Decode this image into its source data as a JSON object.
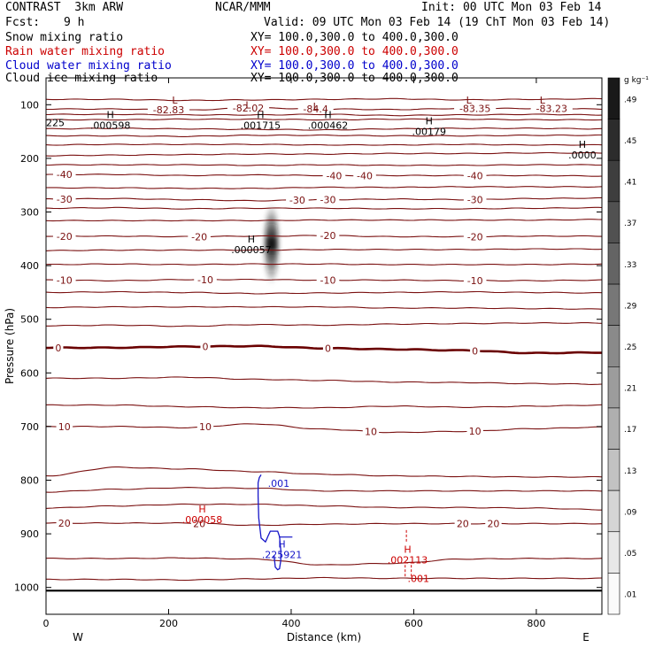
{
  "header": {
    "model": "CONTRAST  3km ARW",
    "center": "NCAR/MMM",
    "init": "Init: 00 UTC Mon 03 Feb 14",
    "fcst_label": "Fcst:",
    "fcst_value": "9 h",
    "valid": "Valid: 09 UTC Mon 03 Feb 14 (19 ChT Mon 03 Feb 14)",
    "fields": [
      {
        "name": "Snow mixing ratio",
        "xy": "XY= 100.0,300.0 to 400.0,300.0",
        "color": "#000000"
      },
      {
        "name": "Rain water mixing ratio",
        "xy": "XY= 100.0,300.0 to 400.0,300.0",
        "color": "#cc0000"
      },
      {
        "name": "Cloud water mixing ratio",
        "xy": "XY= 100.0,300.0 to 400.0,300.0",
        "color": "#0000cc"
      },
      {
        "name": "Cloud ice mixing ratio",
        "xy": "XY= 100.0,300.0 to 400.0,300.0",
        "color": "#000000"
      }
    ]
  },
  "colors": {
    "temperature": "#7a1010",
    "zero_isotherm": "#6a0000",
    "rain": "#cc0000",
    "cloud_water": "#1515c8",
    "ice": "#000000"
  },
  "chart_data": {
    "type": "cross-section",
    "xlabel": "Distance (km)",
    "ylabel": "Pressure (hPa)",
    "xlim": [
      0,
      907
    ],
    "ylim": [
      1050,
      50
    ],
    "xticks": [
      0,
      200,
      400,
      600,
      800
    ],
    "yticks": [
      100,
      200,
      300,
      400,
      500,
      600,
      700,
      800,
      900,
      1000
    ],
    "side_labels": {
      "left": "W",
      "right": "E"
    },
    "colorbar": {
      "unit": "g kg⁻¹",
      "ticks": [
        ".01",
        ".05",
        ".09",
        ".13",
        ".17",
        ".21",
        ".25",
        ".29",
        ".33",
        ".37",
        ".41",
        ".45",
        ".49"
      ],
      "values": [
        0.01,
        0.05,
        0.09,
        0.13,
        0.17,
        0.21,
        0.25,
        0.29,
        0.33,
        0.37,
        0.41,
        0.45,
        0.49
      ]
    },
    "surface_pressure": 1006,
    "temperature_contours": [
      {
        "p": [
          90,
          90,
          92,
          91,
          90,
          89,
          91,
          90,
          89
        ],
        "labels": []
      },
      {
        "p": [
          108,
          108,
          110,
          106,
          108,
          109,
          107,
          107,
          108
        ],
        "labels": [
          {
            "x": 200,
            "text": "-82.83"
          },
          {
            "x": 330,
            "text": "-82.02"
          },
          {
            "x": 440,
            "text": "-84.4"
          },
          {
            "x": 700,
            "text": "-83.35"
          },
          {
            "x": 825,
            "text": "-83.23"
          }
        ]
      },
      {
        "p": [
          118,
          118,
          119,
          119,
          118,
          120,
          119,
          118,
          119
        ],
        "labels": []
      },
      {
        "p": [
          128,
          128,
          127,
          127,
          128,
          127,
          127,
          128,
          128
        ],
        "labels": []
      },
      {
        "p": [
          145,
          144,
          145,
          146,
          147,
          145,
          144,
          144,
          145
        ],
        "labels": []
      },
      {
        "p": [
          158,
          158,
          159,
          157,
          157,
          158,
          158,
          157,
          157
        ],
        "labels": []
      },
      {
        "p": [
          175,
          174,
          174,
          174,
          175,
          175,
          174,
          175,
          175
        ],
        "labels": []
      },
      {
        "p": [
          195,
          194,
          193,
          192,
          192,
          191,
          191,
          190,
          190
        ],
        "labels": []
      },
      {
        "p": [
          212,
          212,
          212,
          213,
          212,
          213,
          213,
          212,
          212
        ],
        "labels": []
      },
      {
        "p": [
          230,
          230,
          232,
          231,
          232,
          232,
          232,
          232,
          233
        ],
        "labels": [
          {
            "x": 30,
            "text": "-40"
          },
          {
            "x": 470,
            "text": "-40"
          },
          {
            "x": 520,
            "text": "-40"
          },
          {
            "x": 700,
            "text": "-40"
          }
        ]
      },
      {
        "p": [
          255,
          255,
          256,
          256,
          254,
          254,
          253,
          253,
          253
        ],
        "labels": []
      },
      {
        "p": [
          276,
          275,
          277,
          279,
          277,
          276,
          277,
          275,
          274
        ],
        "labels": [
          {
            "x": 30,
            "text": "-30"
          },
          {
            "x": 410,
            "text": "-30"
          },
          {
            "x": 460,
            "text": "-30"
          },
          {
            "x": 700,
            "text": "-30"
          }
        ]
      },
      {
        "p": [
          293,
          292,
          294,
          293,
          293,
          294,
          294,
          293,
          292
        ],
        "labels": []
      },
      {
        "p": [
          316,
          316,
          316,
          316,
          315,
          315,
          315,
          315,
          314
        ],
        "labels": []
      },
      {
        "p": [
          345,
          345,
          346,
          345,
          344,
          346,
          346,
          345,
          345
        ],
        "labels": [
          {
            "x": 30,
            "text": "-20"
          },
          {
            "x": 250,
            "text": "-20"
          },
          {
            "x": 460,
            "text": "-20"
          },
          {
            "x": 700,
            "text": "-20"
          }
        ]
      },
      {
        "p": [
          372,
          371,
          371,
          371,
          370,
          370,
          370,
          369,
          369
        ],
        "labels": []
      },
      {
        "p": [
          398,
          397,
          398,
          397,
          397,
          398,
          398,
          398,
          397
        ],
        "labels": []
      },
      {
        "p": [
          427,
          428,
          426,
          426,
          427,
          427,
          428,
          428,
          427
        ],
        "labels": [
          {
            "x": 30,
            "text": "-10"
          },
          {
            "x": 260,
            "text": "-10"
          },
          {
            "x": 460,
            "text": "-10"
          },
          {
            "x": 700,
            "text": "-10"
          }
        ]
      },
      {
        "p": [
          450,
          449,
          450,
          452,
          451,
          450,
          449,
          450,
          451
        ],
        "labels": []
      },
      {
        "p": [
          478,
          477,
          477,
          477,
          477,
          479,
          479,
          480,
          481
        ],
        "labels": []
      },
      {
        "p": [
          512,
          511,
          513,
          510,
          511,
          509,
          508,
          507,
          507
        ],
        "labels": []
      },
      {
        "p": [
          553,
          553,
          551,
          550,
          554,
          556,
          558,
          563,
          562
        ],
        "labels": [
          {
            "x": 20,
            "text": "0"
          },
          {
            "x": 260,
            "text": "0"
          },
          {
            "x": 460,
            "text": "0"
          },
          {
            "x": 700,
            "text": "0"
          }
        ],
        "bold": true
      },
      {
        "p": [
          610,
          610,
          608,
          612,
          614,
          617,
          618,
          620,
          621
        ],
        "labels": []
      },
      {
        "p": [
          660,
          660,
          663,
          665,
          665,
          662,
          664,
          662,
          660
        ],
        "labels": []
      },
      {
        "p": [
          700,
          700,
          702,
          695,
          705,
          711,
          709,
          704,
          701
        ],
        "labels": [
          {
            "x": 30,
            "text": "10"
          },
          {
            "x": 260,
            "text": "10"
          },
          {
            "x": 530,
            "text": "10"
          },
          {
            "x": 700,
            "text": "10"
          }
        ]
      },
      {
        "p": [
          792,
          776,
          779,
          784,
          789,
          792,
          793,
          794,
          794
        ],
        "labels": []
      },
      {
        "p": [
          822,
          817,
          814,
          815,
          820,
          820,
          820,
          820,
          820
        ],
        "labels": []
      },
      {
        "p": [
          852,
          848,
          845,
          845,
          848,
          851,
          851,
          852,
          855
        ],
        "labels": []
      },
      {
        "p": [
          880,
          880,
          880,
          884,
          882,
          881,
          881,
          881,
          881
        ],
        "labels": [
          {
            "x": 30,
            "text": "20"
          },
          {
            "x": 250,
            "text": "20"
          },
          {
            "x": 680,
            "text": "20"
          },
          {
            "x": 730,
            "text": "20"
          }
        ]
      },
      {
        "p": [
          946,
          946,
          945,
          947,
          958,
          955,
          947,
          946,
          946
        ],
        "labels": []
      },
      {
        "p": [
          985,
          985,
          986,
          984,
          982,
          983,
          983,
          983,
          983
        ],
        "labels": []
      }
    ],
    "extrema": [
      {
        "kind": "L",
        "x": 210,
        "p": 98,
        "value": "",
        "color": "#7a1010"
      },
      {
        "kind": "L",
        "x": 330,
        "p": 107,
        "value": "",
        "color": "#7a1010"
      },
      {
        "kind": "L",
        "x": 440,
        "p": 109,
        "value": "",
        "color": "#7a1010"
      },
      {
        "kind": "L",
        "x": 690,
        "p": 98,
        "value": "",
        "color": "#7a1010"
      },
      {
        "kind": "L",
        "x": 810,
        "p": 98,
        "value": "",
        "color": "#7a1010"
      },
      {
        "kind": "H",
        "x": 105,
        "p": 125,
        "value": ".000598",
        "color": "#000000"
      },
      {
        "kind": "H",
        "x": 350,
        "p": 125,
        "value": ".001715",
        "color": "#000000"
      },
      {
        "kind": "H",
        "x": 460,
        "p": 125,
        "value": ".000462",
        "color": "#000000"
      },
      {
        "kind": "H",
        "x": 625,
        "p": 137,
        "value": ".00179",
        "color": "#000000"
      },
      {
        "kind": "H",
        "x": 875,
        "p": 180,
        "value": ".0000",
        "color": "#000000"
      },
      {
        "kind": "",
        "x": 0,
        "p": 140,
        "value": "225",
        "color": "#000000"
      },
      {
        "kind": "H",
        "x": 335,
        "p": 357,
        "value": ".000057",
        "color": "#000000"
      },
      {
        "kind": "H",
        "x": 385,
        "p": 925,
        "value": ".225921",
        "color": "#1515c8"
      },
      {
        "kind": "H",
        "x": 255,
        "p": 860,
        "value": ".000058",
        "color": "#cc0000"
      },
      {
        "kind": "H",
        "x": 590,
        "p": 935,
        "value": ".002113",
        "color": "#cc0000"
      },
      {
        "kind": "",
        "x": 590,
        "p": 990,
        "value": ".001",
        "color": "#cc0000"
      },
      {
        "kind": "",
        "x": 362,
        "p": 812,
        "value": ".001",
        "color": "#1515c8"
      }
    ],
    "ice_shading": {
      "x": 368,
      "p_center": 360,
      "p_half": 75,
      "max": 0.45
    },
    "cloud_water_contour": {
      "x": [
        351,
        348,
        346,
        346,
        347,
        351,
        358,
        360,
        362,
        366,
        373,
        378,
        381,
        383,
        383,
        381,
        378,
        374,
        372
      ],
      "p": [
        790,
        795,
        805,
        830,
        870,
        908,
        915,
        910,
        905,
        895,
        895,
        895,
        905,
        930,
        950,
        965,
        967,
        962,
        940
      ]
    },
    "rain_marks": [
      {
        "x": 586,
        "p": 970
      },
      {
        "x": 596,
        "p": 970
      },
      {
        "x": 588,
        "p": 905
      }
    ]
  }
}
